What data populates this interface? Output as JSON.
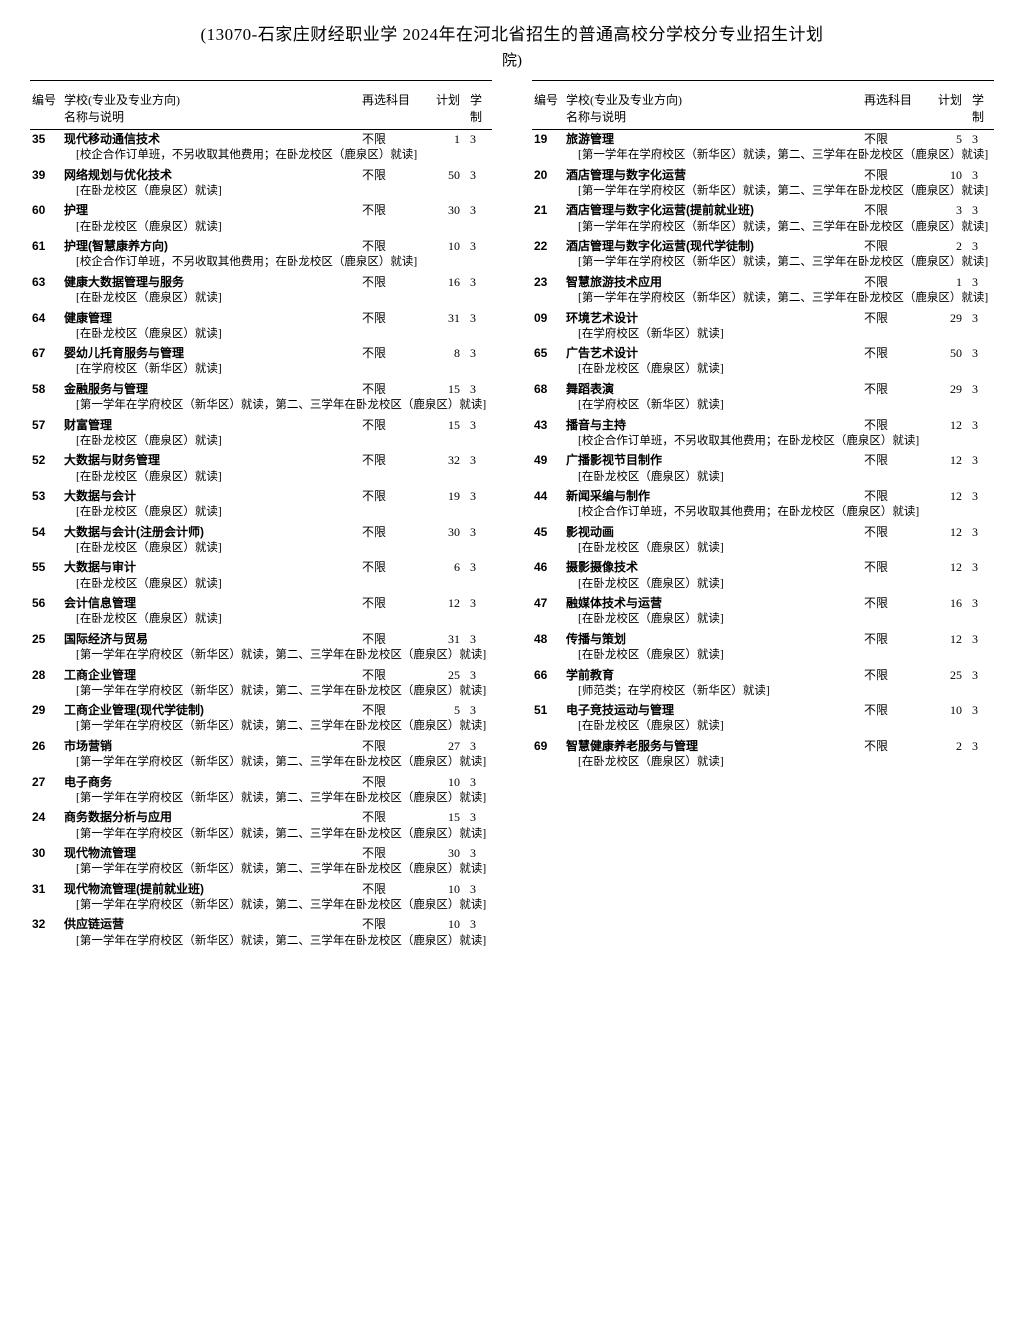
{
  "header": {
    "title": "(13070-石家庄财经职业学 2024年在河北省招生的普通高校分学校分专业招生计划",
    "subtitle": "院)"
  },
  "columns_header": {
    "num": "编号",
    "name_line1": "学校(专业及专业方向)",
    "name_line2": "名称与说明",
    "subj": "再选科目",
    "plan": "计划",
    "dur_line1": "学",
    "dur_line2": "制"
  },
  "left": [
    {
      "code": "35",
      "name": "现代移动通信技术",
      "subj": "不限",
      "plan": "1",
      "dur": "3",
      "note": "[校企合作订单班，不另收取其他费用；在卧龙校区（鹿泉区）就读]"
    },
    {
      "code": "39",
      "name": "网络规划与优化技术",
      "subj": "不限",
      "plan": "50",
      "dur": "3",
      "note": "[在卧龙校区（鹿泉区）就读]"
    },
    {
      "code": "60",
      "name": "护理",
      "subj": "不限",
      "plan": "30",
      "dur": "3",
      "note": "[在卧龙校区（鹿泉区）就读]"
    },
    {
      "code": "61",
      "name": "护理(智慧康养方向)",
      "subj": "不限",
      "plan": "10",
      "dur": "3",
      "note": "[校企合作订单班，不另收取其他费用；在卧龙校区（鹿泉区）就读]"
    },
    {
      "code": "63",
      "name": "健康大数据管理与服务",
      "subj": "不限",
      "plan": "16",
      "dur": "3",
      "note": "[在卧龙校区（鹿泉区）就读]"
    },
    {
      "code": "64",
      "name": "健康管理",
      "subj": "不限",
      "plan": "31",
      "dur": "3",
      "note": "[在卧龙校区（鹿泉区）就读]"
    },
    {
      "code": "67",
      "name": "婴幼儿托育服务与管理",
      "subj": "不限",
      "plan": "8",
      "dur": "3",
      "note": "[在学府校区（新华区）就读]"
    },
    {
      "code": "58",
      "name": "金融服务与管理",
      "subj": "不限",
      "plan": "15",
      "dur": "3",
      "note": "[第一学年在学府校区（新华区）就读，第二、三学年在卧龙校区（鹿泉区）就读]"
    },
    {
      "code": "57",
      "name": "财富管理",
      "subj": "不限",
      "plan": "15",
      "dur": "3",
      "note": "[在卧龙校区（鹿泉区）就读]"
    },
    {
      "code": "52",
      "name": "大数据与财务管理",
      "subj": "不限",
      "plan": "32",
      "dur": "3",
      "note": "[在卧龙校区（鹿泉区）就读]"
    },
    {
      "code": "53",
      "name": "大数据与会计",
      "subj": "不限",
      "plan": "19",
      "dur": "3",
      "note": "[在卧龙校区（鹿泉区）就读]"
    },
    {
      "code": "54",
      "name": "大数据与会计(注册会计师)",
      "subj": "不限",
      "plan": "30",
      "dur": "3",
      "note": "[在卧龙校区（鹿泉区）就读]"
    },
    {
      "code": "55",
      "name": "大数据与审计",
      "subj": "不限",
      "plan": "6",
      "dur": "3",
      "note": "[在卧龙校区（鹿泉区）就读]"
    },
    {
      "code": "56",
      "name": "会计信息管理",
      "subj": "不限",
      "plan": "12",
      "dur": "3",
      "note": "[在卧龙校区（鹿泉区）就读]"
    },
    {
      "code": "25",
      "name": "国际经济与贸易",
      "subj": "不限",
      "plan": "31",
      "dur": "3",
      "note": "[第一学年在学府校区（新华区）就读，第二、三学年在卧龙校区（鹿泉区）就读]"
    },
    {
      "code": "28",
      "name": "工商企业管理",
      "subj": "不限",
      "plan": "25",
      "dur": "3",
      "note": "[第一学年在学府校区（新华区）就读，第二、三学年在卧龙校区（鹿泉区）就读]"
    },
    {
      "code": "29",
      "name": "工商企业管理(现代学徒制)",
      "subj": "不限",
      "plan": "5",
      "dur": "3",
      "note": "[第一学年在学府校区（新华区）就读，第二、三学年在卧龙校区（鹿泉区）就读]"
    },
    {
      "code": "26",
      "name": "市场营销",
      "subj": "不限",
      "plan": "27",
      "dur": "3",
      "note": "[第一学年在学府校区（新华区）就读，第二、三学年在卧龙校区（鹿泉区）就读]"
    },
    {
      "code": "27",
      "name": "电子商务",
      "subj": "不限",
      "plan": "10",
      "dur": "3",
      "note": "[第一学年在学府校区（新华区）就读，第二、三学年在卧龙校区（鹿泉区）就读]"
    },
    {
      "code": "24",
      "name": "商务数据分析与应用",
      "subj": "不限",
      "plan": "15",
      "dur": "3",
      "note": "[第一学年在学府校区（新华区）就读，第二、三学年在卧龙校区（鹿泉区）就读]"
    },
    {
      "code": "30",
      "name": "现代物流管理",
      "subj": "不限",
      "plan": "30",
      "dur": "3",
      "note": "[第一学年在学府校区（新华区）就读，第二、三学年在卧龙校区（鹿泉区）就读]"
    },
    {
      "code": "31",
      "name": "现代物流管理(提前就业班)",
      "subj": "不限",
      "plan": "10",
      "dur": "3",
      "note": "[第一学年在学府校区（新华区）就读，第二、三学年在卧龙校区（鹿泉区）就读]"
    },
    {
      "code": "32",
      "name": "供应链运营",
      "subj": "不限",
      "plan": "10",
      "dur": "3",
      "note": "[第一学年在学府校区（新华区）就读，第二、三学年在卧龙校区（鹿泉区）就读]"
    }
  ],
  "right": [
    {
      "code": "19",
      "name": "旅游管理",
      "subj": "不限",
      "plan": "5",
      "dur": "3",
      "note": "[第一学年在学府校区（新华区）就读，第二、三学年在卧龙校区（鹿泉区）就读]"
    },
    {
      "code": "20",
      "name": "酒店管理与数字化运营",
      "subj": "不限",
      "plan": "10",
      "dur": "3",
      "note": "[第一学年在学府校区（新华区）就读，第二、三学年在卧龙校区（鹿泉区）就读]"
    },
    {
      "code": "21",
      "name": "酒店管理与数字化运营(提前就业班)",
      "subj": "不限",
      "plan": "3",
      "dur": "3",
      "note": "[第一学年在学府校区（新华区）就读，第二、三学年在卧龙校区（鹿泉区）就读]"
    },
    {
      "code": "22",
      "name": "酒店管理与数字化运营(现代学徒制)",
      "subj": "不限",
      "plan": "2",
      "dur": "3",
      "note": "[第一学年在学府校区（新华区）就读，第二、三学年在卧龙校区（鹿泉区）就读]"
    },
    {
      "code": "23",
      "name": "智慧旅游技术应用",
      "subj": "不限",
      "plan": "1",
      "dur": "3",
      "note": "[第一学年在学府校区（新华区）就读，第二、三学年在卧龙校区（鹿泉区）就读]"
    },
    {
      "code": "09",
      "name": "环境艺术设计",
      "subj": "不限",
      "plan": "29",
      "dur": "3",
      "note": "[在学府校区（新华区）就读]"
    },
    {
      "code": "65",
      "name": "广告艺术设计",
      "subj": "不限",
      "plan": "50",
      "dur": "3",
      "note": "[在卧龙校区（鹿泉区）就读]"
    },
    {
      "code": "68",
      "name": "舞蹈表演",
      "subj": "不限",
      "plan": "29",
      "dur": "3",
      "note": "[在学府校区（新华区）就读]"
    },
    {
      "code": "43",
      "name": "播音与主持",
      "subj": "不限",
      "plan": "12",
      "dur": "3",
      "note": "[校企合作订单班，不另收取其他费用；在卧龙校区（鹿泉区）就读]"
    },
    {
      "code": "49",
      "name": "广播影视节目制作",
      "subj": "不限",
      "plan": "12",
      "dur": "3",
      "note": "[在卧龙校区（鹿泉区）就读]"
    },
    {
      "code": "44",
      "name": "新闻采编与制作",
      "subj": "不限",
      "plan": "12",
      "dur": "3",
      "note": "[校企合作订单班，不另收取其他费用；在卧龙校区（鹿泉区）就读]"
    },
    {
      "code": "45",
      "name": "影视动画",
      "subj": "不限",
      "plan": "12",
      "dur": "3",
      "note": "[在卧龙校区（鹿泉区）就读]"
    },
    {
      "code": "46",
      "name": "摄影摄像技术",
      "subj": "不限",
      "plan": "12",
      "dur": "3",
      "note": "[在卧龙校区（鹿泉区）就读]"
    },
    {
      "code": "47",
      "name": "融媒体技术与运营",
      "subj": "不限",
      "plan": "16",
      "dur": "3",
      "note": "[在卧龙校区（鹿泉区）就读]"
    },
    {
      "code": "48",
      "name": "传播与策划",
      "subj": "不限",
      "plan": "12",
      "dur": "3",
      "note": "[在卧龙校区（鹿泉区）就读]"
    },
    {
      "code": "66",
      "name": "学前教育",
      "subj": "不限",
      "plan": "25",
      "dur": "3",
      "note": "[师范类；在学府校区（新华区）就读]"
    },
    {
      "code": "51",
      "name": "电子竞技运动与管理",
      "subj": "不限",
      "plan": "10",
      "dur": "3",
      "note": "[在卧龙校区（鹿泉区）就读]"
    },
    {
      "code": "69",
      "name": "智慧健康养老服务与管理",
      "subj": "不限",
      "plan": "2",
      "dur": "3",
      "note": "[在卧龙校区（鹿泉区）就读]"
    }
  ]
}
